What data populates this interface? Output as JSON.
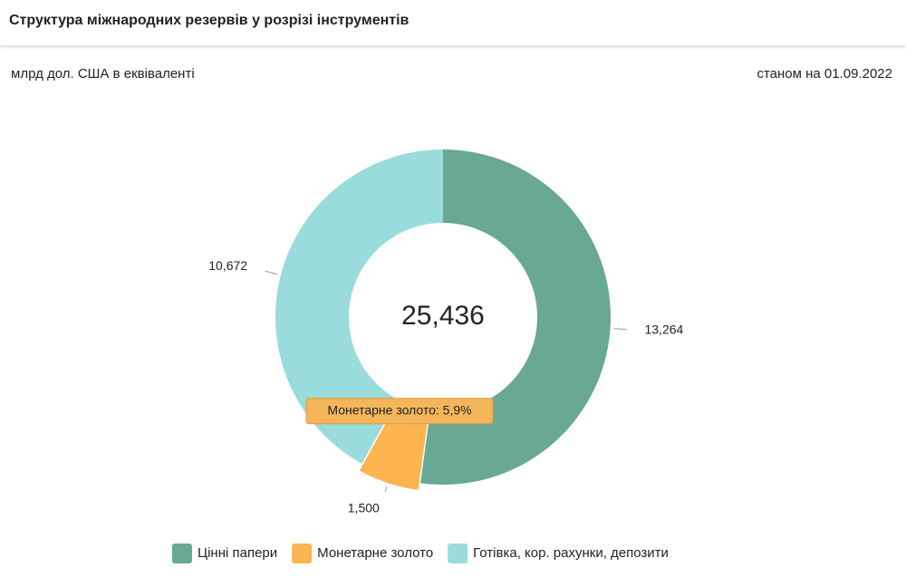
{
  "header": {
    "title": "Структура міжнародних резервів у розрізі інструментів"
  },
  "chart_data": {
    "type": "donut",
    "subtitle": "млрд дол. США в еквіваленті",
    "date_note": "станом на 01.09.2022",
    "categories": [
      "Цінні папери",
      "Монетарне золото",
      "Готівка, кор. рахунки, депозити"
    ],
    "values": [
      13.264,
      1.5,
      10.672
    ],
    "value_labels": [
      "13,264",
      "1,500",
      "10,672"
    ],
    "colors": [
      "#68a895",
      "#fbb450",
      "#9adcdc"
    ],
    "total": {
      "value": 25.436,
      "label": "25,436"
    },
    "tooltip": "Монетарне золото: 5,9%",
    "highlighted": 1,
    "legend": "bottom"
  }
}
